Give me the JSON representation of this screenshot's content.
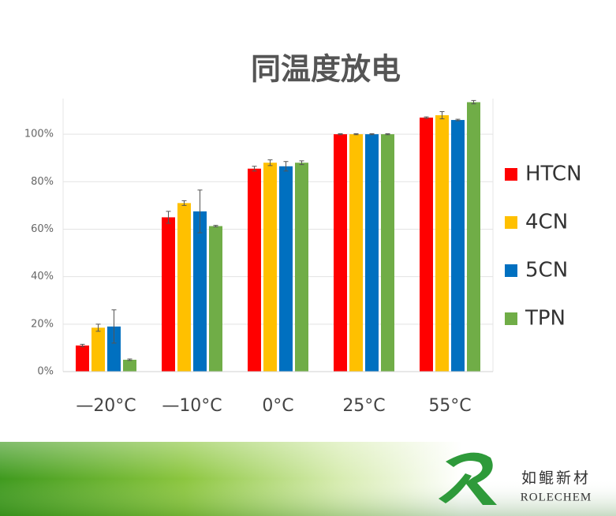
{
  "chart_data": {
    "type": "bar",
    "title": "同温度放电",
    "categories": [
      "—20°C",
      "—10°C",
      "0°C",
      "25°C",
      "55°C"
    ],
    "series": [
      {
        "name": "HTCN",
        "color": "#ff0000",
        "values": [
          11,
          65,
          85.5,
          100,
          107
        ],
        "errors": [
          0.5,
          2.5,
          1,
          0.2,
          0.3
        ]
      },
      {
        "name": "4CN",
        "color": "#ffc000",
        "values": [
          18.5,
          71,
          88,
          100,
          108
        ],
        "errors": [
          1.5,
          1,
          1.2,
          0.2,
          1.5
        ]
      },
      {
        "name": "5CN",
        "color": "#0070c0",
        "values": [
          19,
          67.5,
          86.5,
          100,
          106
        ],
        "errors": [
          7,
          9,
          2,
          0.2,
          0.3
        ]
      },
      {
        "name": "TPN",
        "color": "#70ad47",
        "values": [
          5,
          61.3,
          88,
          100,
          113.5
        ],
        "errors": [
          0.3,
          0.3,
          0.8,
          0.2,
          0.7
        ]
      }
    ],
    "ylim": [
      0,
      115
    ],
    "yticks": [
      {
        "value": 0,
        "label": "0%"
      },
      {
        "value": 20,
        "label": "20%"
      },
      {
        "value": 40,
        "label": "40%"
      },
      {
        "value": 60,
        "label": "60%"
      },
      {
        "value": 80,
        "label": "80%"
      },
      {
        "value": 100,
        "label": "100%"
      }
    ],
    "grid": true,
    "legend": "right"
  },
  "footer": {
    "brand_cn": "如鲲新材",
    "brand_en": "ROLECHEM"
  }
}
